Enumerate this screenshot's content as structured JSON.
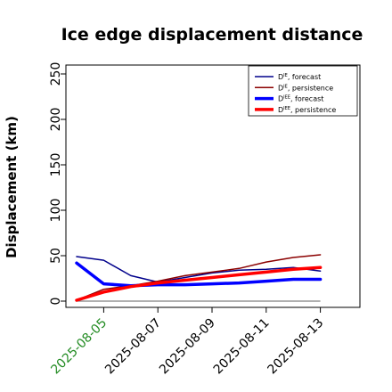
{
  "chart_data": {
    "type": "line",
    "title": "Ice edge displacement distance",
    "xlabel": "",
    "ylabel": "Displacement (km)",
    "ylim": [
      0,
      260
    ],
    "yticks": [
      0,
      50,
      100,
      150,
      200,
      250
    ],
    "x": [
      "2025-08-04",
      "2025-08-05",
      "2025-08-06",
      "2025-08-07",
      "2025-08-08",
      "2025-08-09",
      "2025-08-10",
      "2025-08-11",
      "2025-08-12",
      "2025-08-13"
    ],
    "xticks": [
      "2025-08-05",
      "2025-08-07",
      "2025-08-09",
      "2025-08-11",
      "2025-08-13"
    ],
    "xtick_colors": [
      "#228b22",
      "#000000",
      "#000000",
      "#000000",
      "#000000"
    ],
    "grid": false,
    "legend_position": "top-right",
    "series": [
      {
        "name": "D^IE, forecast",
        "color": "#00008b",
        "width": 1.5,
        "values": [
          49,
          45,
          28,
          21,
          26,
          31,
          34,
          35,
          37,
          33
        ]
      },
      {
        "name": "D^IE, persistence",
        "color": "#8b0000",
        "width": 1.5,
        "values": [
          1,
          13,
          17,
          22,
          28,
          32,
          36,
          43,
          48,
          51
        ]
      },
      {
        "name": "D^IEE, forecast",
        "color": "#0000ff",
        "width": 3.5,
        "values": [
          42,
          19,
          17,
          18,
          18,
          19,
          20,
          22,
          24,
          24
        ]
      },
      {
        "name": "D^IEE, persistence",
        "color": "#ff0000",
        "width": 3.5,
        "values": [
          1,
          10,
          16,
          20,
          23,
          26,
          29,
          32,
          35,
          37
        ]
      }
    ],
    "baseline": {
      "value": 0,
      "color": "#808080"
    }
  },
  "legend": [
    {
      "base": "D",
      "sup": "IE",
      "suffix": ", forecast"
    },
    {
      "base": "D",
      "sup": "IE",
      "suffix": ", persistence"
    },
    {
      "base": "D",
      "sup": "IEE",
      "suffix": ", forecast"
    },
    {
      "base": "D",
      "sup": "IEE",
      "suffix": ", persistence"
    }
  ]
}
